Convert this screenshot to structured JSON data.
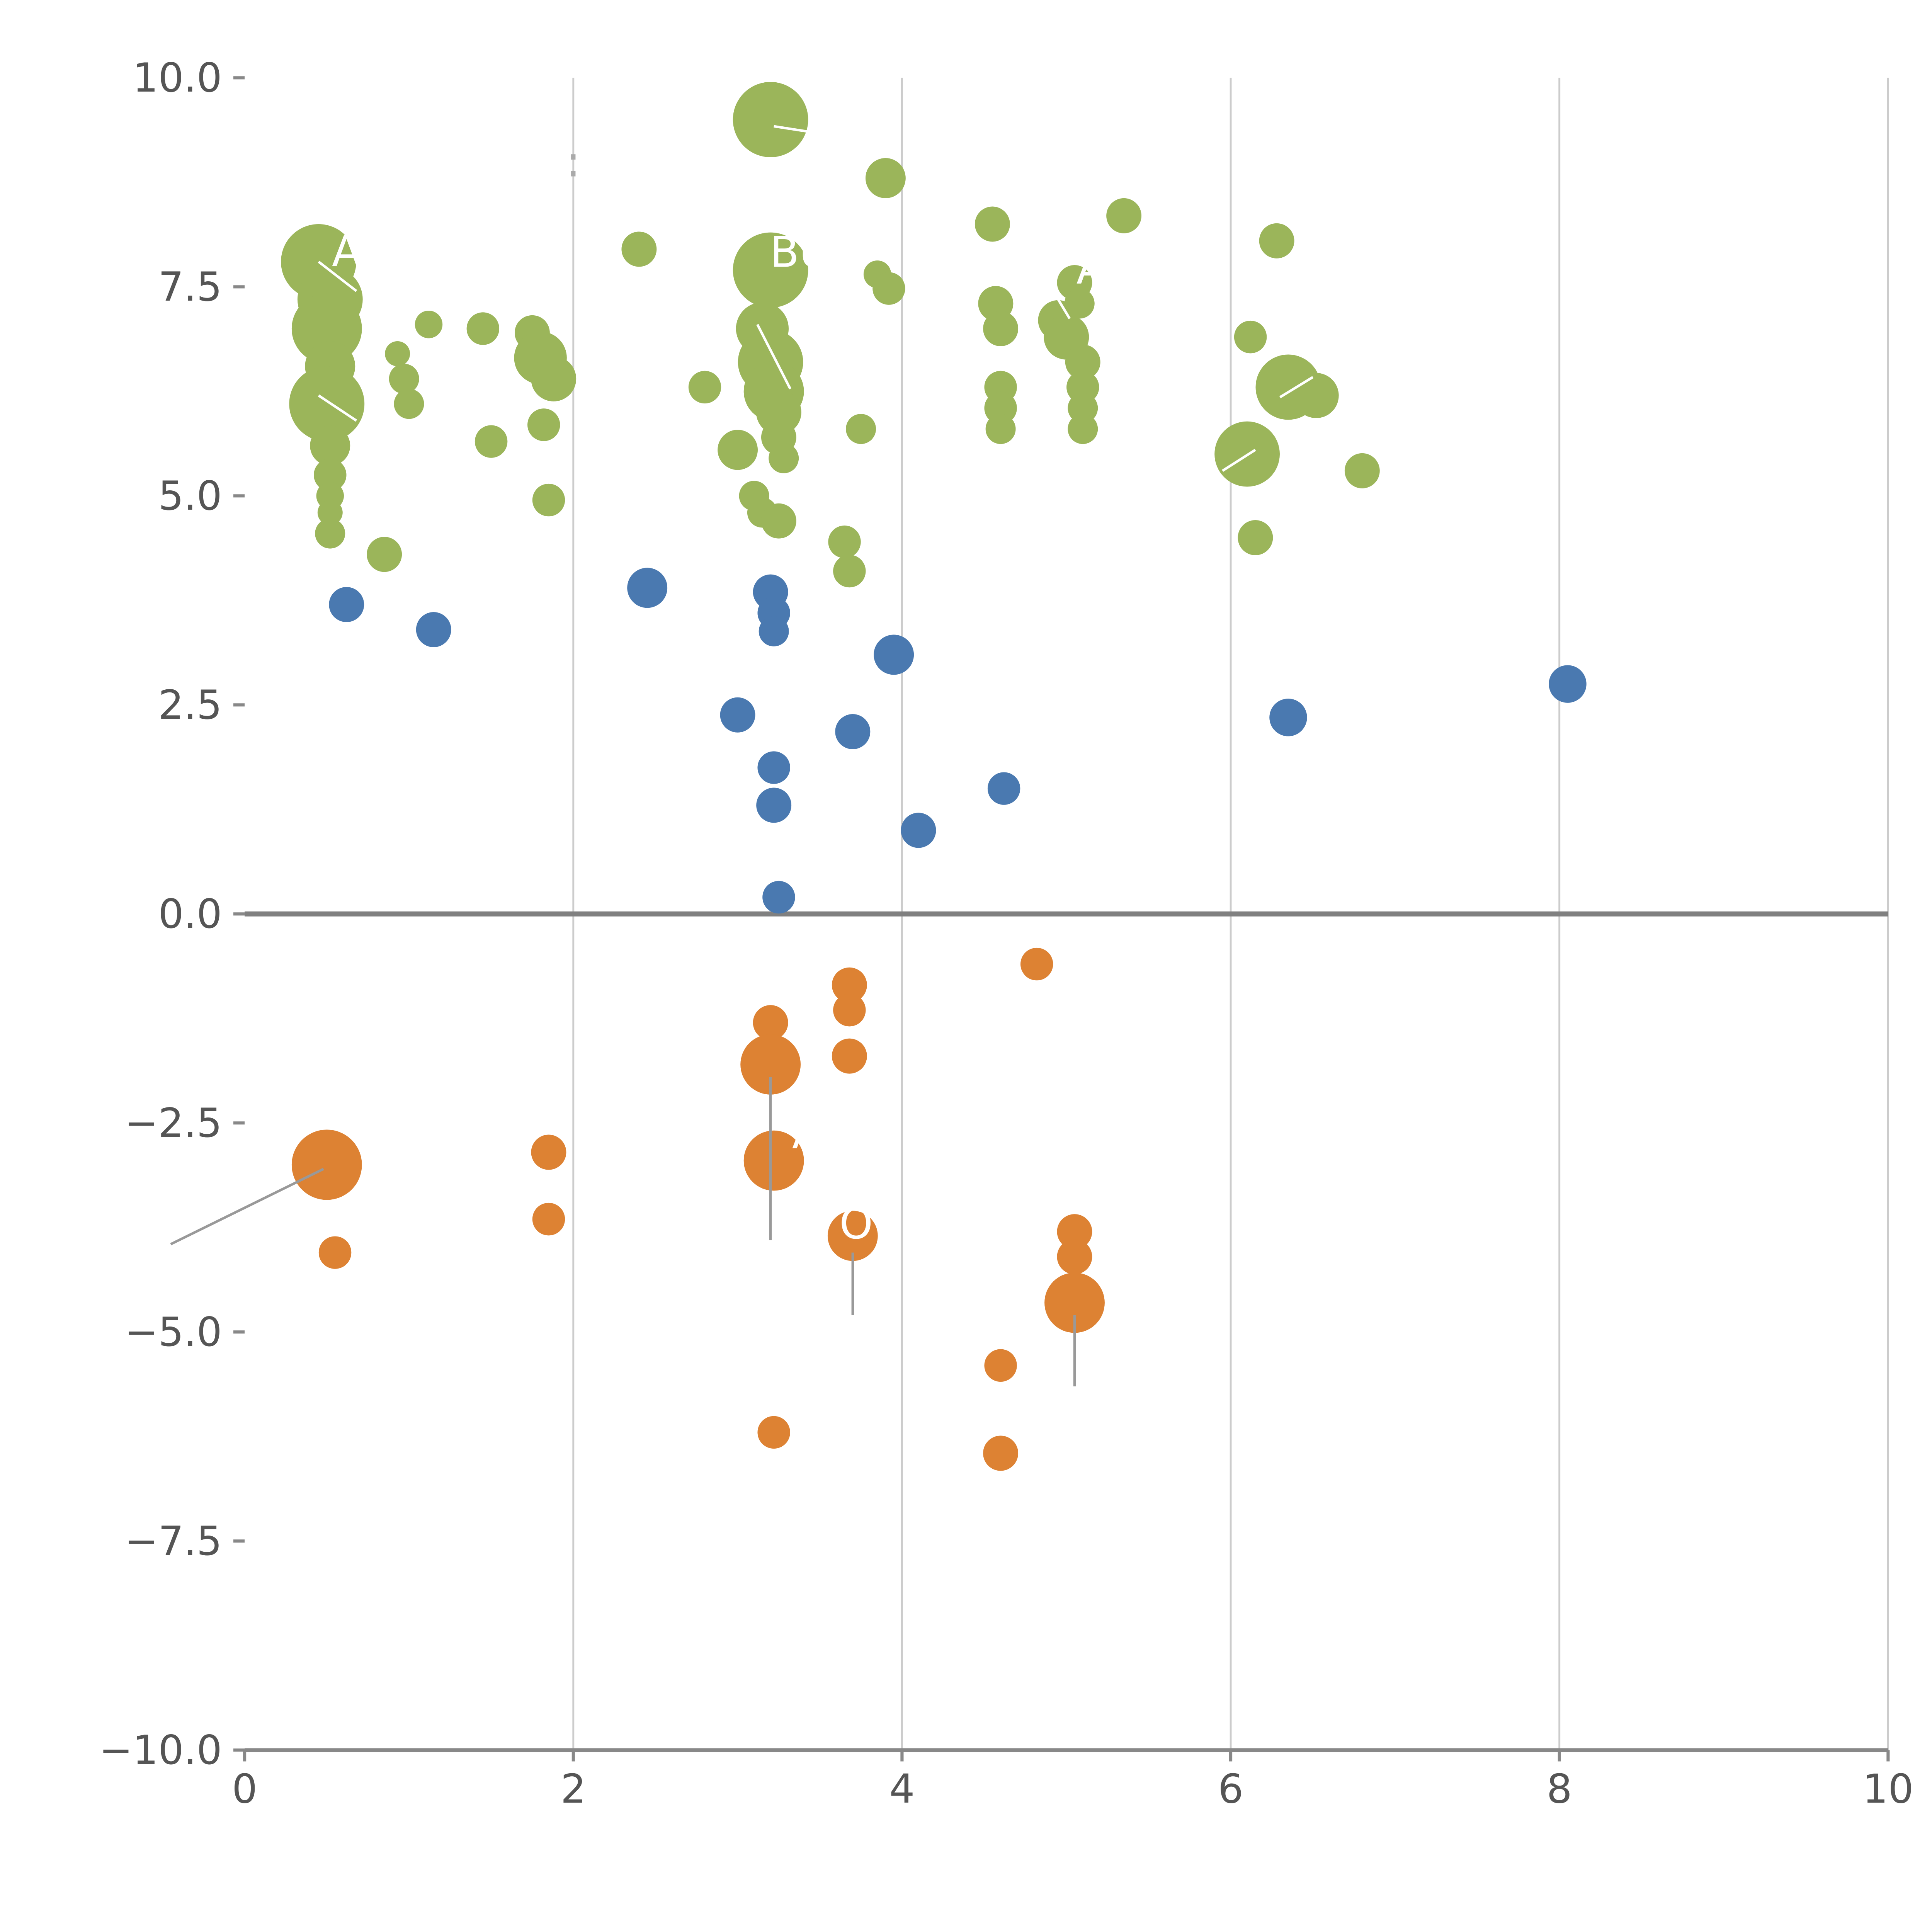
{
  "chart_data": {
    "type": "scatter",
    "title": "",
    "xlabel": "",
    "ylabel": "",
    "xlim": [
      0,
      10
    ],
    "ylim": [
      -10,
      10
    ],
    "grid": true,
    "legend": "none",
    "x_ticks": [
      "0",
      "2",
      "4",
      "6",
      "8",
      "10"
    ],
    "x_tick_values": [
      0,
      2,
      4,
      6,
      8,
      10
    ],
    "y_ticks": [
      "10.0",
      "7.5",
      "5.0",
      "2.5",
      "0.0",
      "−2.5",
      "−5.0",
      "−7.5",
      "−10.0"
    ],
    "y_tick_values": [
      10,
      7.5,
      5,
      2.5,
      0,
      -2.5,
      -5,
      -7.5,
      -10
    ],
    "gridline_x_values": [
      2,
      4,
      6,
      8,
      10
    ],
    "zero_line_y": 0,
    "colors": {
      "green": "#9bb55a",
      "blue": "#4a79b0",
      "orange": "#dd8233",
      "grid": "#cccccc",
      "axis": "#888888",
      "zero_line": "#808080",
      "tick_label": "#555555",
      "leader": "#999999",
      "annotation": "#ffffff"
    },
    "series": [
      {
        "name": "group-green",
        "color_key": "green",
        "points": [
          [
            0.45,
            7.8,
            30
          ],
          [
            0.52,
            7.35,
            26
          ],
          [
            0.5,
            7.0,
            28
          ],
          [
            0.52,
            6.55,
            20
          ],
          [
            0.5,
            6.1,
            30
          ],
          [
            0.52,
            5.6,
            16
          ],
          [
            0.52,
            5.25,
            13
          ],
          [
            0.52,
            5.0,
            11
          ],
          [
            0.52,
            4.8,
            10
          ],
          [
            0.52,
            4.55,
            12
          ],
          [
            0.85,
            4.3,
            14
          ],
          [
            0.93,
            6.7,
            10
          ],
          [
            0.97,
            6.4,
            12
          ],
          [
            1.0,
            6.1,
            12
          ],
          [
            1.12,
            7.05,
            11
          ],
          [
            1.45,
            7.0,
            13
          ],
          [
            1.5,
            5.65,
            13
          ],
          [
            1.75,
            6.95,
            14
          ],
          [
            1.8,
            6.65,
            21
          ],
          [
            1.88,
            6.4,
            18
          ],
          [
            1.82,
            5.85,
            13
          ],
          [
            1.85,
            4.95,
            13
          ],
          [
            2.4,
            7.95,
            14
          ],
          [
            2.8,
            6.3,
            13
          ],
          [
            3.0,
            5.55,
            16
          ],
          [
            3.1,
            5.0,
            12
          ],
          [
            3.15,
            4.8,
            12
          ],
          [
            3.2,
            9.5,
            30
          ],
          [
            3.2,
            7.7,
            30
          ],
          [
            3.15,
            7.0,
            21
          ],
          [
            3.2,
            6.6,
            26
          ],
          [
            3.22,
            6.25,
            24
          ],
          [
            3.25,
            6.0,
            18
          ],
          [
            3.25,
            5.7,
            14
          ],
          [
            3.28,
            5.45,
            12
          ],
          [
            3.25,
            4.7,
            14
          ],
          [
            3.65,
            4.45,
            13
          ],
          [
            3.68,
            4.1,
            13
          ],
          [
            3.75,
            5.8,
            12
          ],
          [
            3.85,
            7.65,
            11
          ],
          [
            3.92,
            7.48,
            13
          ],
          [
            3.9,
            8.8,
            16
          ],
          [
            4.55,
            8.25,
            14
          ],
          [
            4.57,
            7.3,
            14
          ],
          [
            4.6,
            7.0,
            14
          ],
          [
            4.6,
            6.3,
            13
          ],
          [
            4.6,
            6.05,
            13
          ],
          [
            4.6,
            5.8,
            12
          ],
          [
            4.95,
            7.1,
            16
          ],
          [
            5.0,
            6.9,
            18
          ],
          [
            5.05,
            7.55,
            14
          ],
          [
            5.08,
            7.3,
            12
          ],
          [
            5.1,
            6.6,
            14
          ],
          [
            5.1,
            6.3,
            13
          ],
          [
            5.1,
            6.05,
            12
          ],
          [
            5.1,
            5.8,
            12
          ],
          [
            5.35,
            8.35,
            14
          ],
          [
            6.1,
            5.5,
            26
          ],
          [
            6.15,
            4.5,
            14
          ],
          [
            6.12,
            6.9,
            13
          ],
          [
            6.28,
            8.05,
            14
          ],
          [
            6.35,
            6.3,
            26
          ],
          [
            6.52,
            6.2,
            18
          ],
          [
            6.8,
            5.3,
            14
          ]
        ]
      },
      {
        "name": "group-blue",
        "color_key": "blue",
        "points": [
          [
            0.62,
            3.7,
            14
          ],
          [
            1.15,
            3.4,
            14
          ],
          [
            2.45,
            3.9,
            16
          ],
          [
            3.2,
            3.85,
            14
          ],
          [
            3.22,
            3.6,
            13
          ],
          [
            3.22,
            3.38,
            12
          ],
          [
            3.0,
            2.38,
            14
          ],
          [
            3.22,
            1.75,
            13
          ],
          [
            3.22,
            1.3,
            14
          ],
          [
            3.25,
            0.2,
            13
          ],
          [
            3.7,
            2.18,
            14
          ],
          [
            3.95,
            3.1,
            16
          ],
          [
            4.1,
            1.0,
            14
          ],
          [
            4.62,
            1.5,
            13
          ],
          [
            6.35,
            2.35,
            15
          ],
          [
            8.05,
            2.75,
            15
          ]
        ]
      },
      {
        "name": "group-orange",
        "color_key": "orange",
        "points": [
          [
            0.5,
            -3.0,
            28
          ],
          [
            0.55,
            -4.05,
            13
          ],
          [
            1.85,
            -2.85,
            14
          ],
          [
            1.85,
            -3.65,
            13
          ],
          [
            3.2,
            -1.3,
            14
          ],
          [
            3.2,
            -1.8,
            24
          ],
          [
            3.22,
            -2.95,
            24
          ],
          [
            3.68,
            -0.85,
            14
          ],
          [
            3.68,
            -1.15,
            13
          ],
          [
            3.68,
            -1.7,
            14
          ],
          [
            3.7,
            -3.85,
            20
          ],
          [
            4.82,
            -0.6,
            13
          ],
          [
            5.05,
            -3.8,
            14
          ],
          [
            5.05,
            -4.1,
            14
          ],
          [
            5.05,
            -4.65,
            24
          ],
          [
            4.6,
            -5.4,
            13
          ],
          [
            3.22,
            -6.2,
            13
          ],
          [
            4.6,
            -6.45,
            14
          ]
        ]
      }
    ],
    "annotations": [
      {
        "text": "A",
        "x": 0.62,
        "y": 7.93,
        "color": "#ffffff"
      },
      {
        "text": "BU",
        "x": 3.38,
        "y": 7.92,
        "color": "#ffffff"
      },
      {
        "text": "A",
        "x": 5.15,
        "y": 7.72,
        "color": "#ffffff"
      },
      {
        "text": "A",
        "x": 3.42,
        "y": -2.62,
        "color": "#ffffff"
      },
      {
        "text": "OT",
        "x": 3.8,
        "y": -3.7,
        "color": "#ffffff"
      },
      {
        "text": ":",
        "x": 2.0,
        "y": 9.0,
        "color": "#aaaaaa"
      }
    ],
    "leader_lines": [
      {
        "x1": -0.45,
        "y1": -3.95,
        "x2": 0.48,
        "y2": -3.05
      },
      {
        "x1": 3.2,
        "y1": -1.95,
        "x2": 3.2,
        "y2": -3.9
      },
      {
        "x1": 3.7,
        "y1": -4.05,
        "x2": 3.7,
        "y2": -4.8
      },
      {
        "x1": 5.05,
        "y1": -4.8,
        "x2": 5.05,
        "y2": -5.65
      }
    ],
    "white_segments": [
      {
        "x1": 3.22,
        "y1": 9.42,
        "x2": 3.45,
        "y2": 9.35
      },
      {
        "x1": 0.45,
        "y1": 7.8,
        "x2": 0.68,
        "y2": 7.45
      },
      {
        "x1": 0.45,
        "y1": 6.2,
        "x2": 0.68,
        "y2": 5.9
      },
      {
        "x1": 3.12,
        "y1": 7.05,
        "x2": 3.32,
        "y2": 6.28
      },
      {
        "x1": 4.95,
        "y1": 7.35,
        "x2": 5.02,
        "y2": 7.12
      },
      {
        "x1": 5.95,
        "y1": 5.3,
        "x2": 6.15,
        "y2": 5.55
      },
      {
        "x1": 6.3,
        "y1": 6.18,
        "x2": 6.5,
        "y2": 6.42
      }
    ]
  }
}
